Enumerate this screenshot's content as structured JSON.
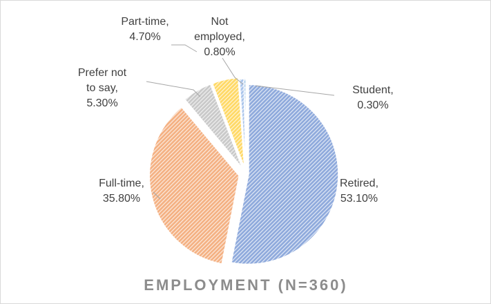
{
  "chart_data": {
    "type": "pie",
    "title": "EMPLOYMENT (N=360)",
    "categories": [
      "Retired",
      "Full-time",
      "Prefer not to say",
      "Part-time",
      "Not employed",
      "Student"
    ],
    "values": [
      53.1,
      35.8,
      5.3,
      4.7,
      0.8,
      0.3
    ],
    "value_labels": [
      "53.10%",
      "35.80%",
      "5.30%",
      "4.70%",
      "0.80%",
      "0.30%"
    ],
    "colors": [
      "#8faadc",
      "#f4b183",
      "#c9c9c9",
      "#ffd966",
      "#a9c4eb",
      "#5b9bd5"
    ]
  }
}
